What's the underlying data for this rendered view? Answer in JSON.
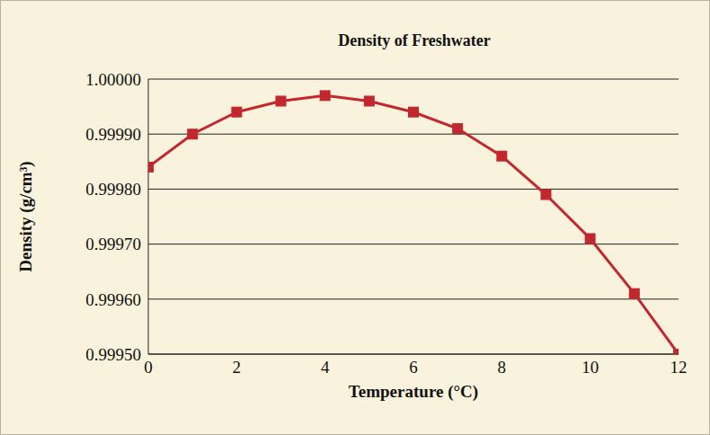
{
  "chart_data": {
    "type": "line",
    "title": "Density of Freshwater",
    "x_label": "Temperature (°C)",
    "y_label": "Density (g/cm³)",
    "x": [
      0,
      1,
      2,
      3,
      4,
      5,
      6,
      7,
      8,
      9,
      10,
      11,
      12
    ],
    "series": [
      {
        "name": "Density",
        "color": "#c1272d",
        "marker": "square",
        "line_style": "solid",
        "values": [
          0.99984,
          0.9999,
          0.99994,
          0.99996,
          0.99997,
          0.99996,
          0.99994,
          0.99991,
          0.99986,
          0.99979,
          0.99971,
          0.99961,
          0.9995
        ]
      }
    ],
    "xlim": [
      0,
      12
    ],
    "xticks": [
      0,
      2,
      4,
      6,
      8,
      10,
      12
    ],
    "ylim": [
      0.9995,
      1.0
    ],
    "yticks": [
      {
        "value": 0.9995,
        "label": "0.99950"
      },
      {
        "value": 0.9996,
        "label": "0.99960"
      },
      {
        "value": 0.9997,
        "label": "0.99970"
      },
      {
        "value": 0.9998,
        "label": "0.99980"
      },
      {
        "value": 0.9999,
        "label": "0.99990"
      },
      {
        "value": 1.0,
        "label": "1.00000"
      }
    ],
    "grid": true
  }
}
